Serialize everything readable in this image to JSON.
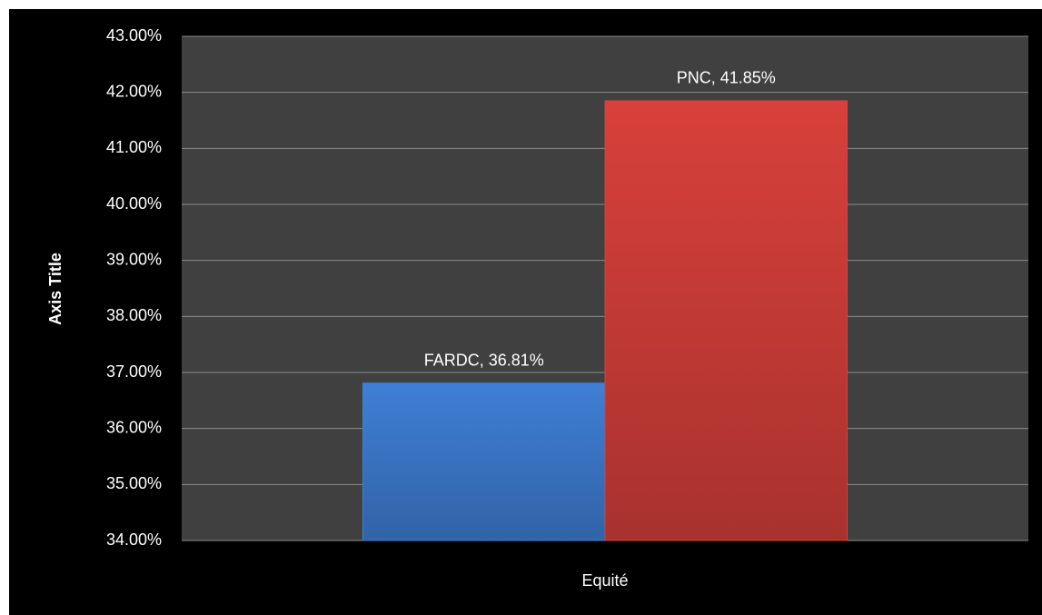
{
  "chart_data": {
    "type": "bar",
    "y_axis_label": "Axis Title",
    "categories": [
      "Equité"
    ],
    "series": [
      {
        "color": "#3f7fd6",
        "values": [
          36.81
        ],
        "value_labels": [
          "FARDC, 36.81%"
        ]
      },
      {
        "color": "#d8403b",
        "values": [
          41.85
        ],
        "value_labels": [
          "PNC, 41.85%"
        ]
      }
    ],
    "ylim": [
      34,
      43
    ],
    "yticks": [
      {
        "value": 34,
        "label": "34.00%"
      },
      {
        "value": 35,
        "label": "35.00%"
      },
      {
        "value": 36,
        "label": "36.00%"
      },
      {
        "value": 37,
        "label": "37.00%"
      },
      {
        "value": 38,
        "label": "38.00%"
      },
      {
        "value": 39,
        "label": "39.00%"
      },
      {
        "value": 40,
        "label": "40.00%"
      },
      {
        "value": 41,
        "label": "41.00%"
      },
      {
        "value": 42,
        "label": "42.00%"
      },
      {
        "value": 43,
        "label": "43.00%"
      }
    ],
    "grid": true
  }
}
